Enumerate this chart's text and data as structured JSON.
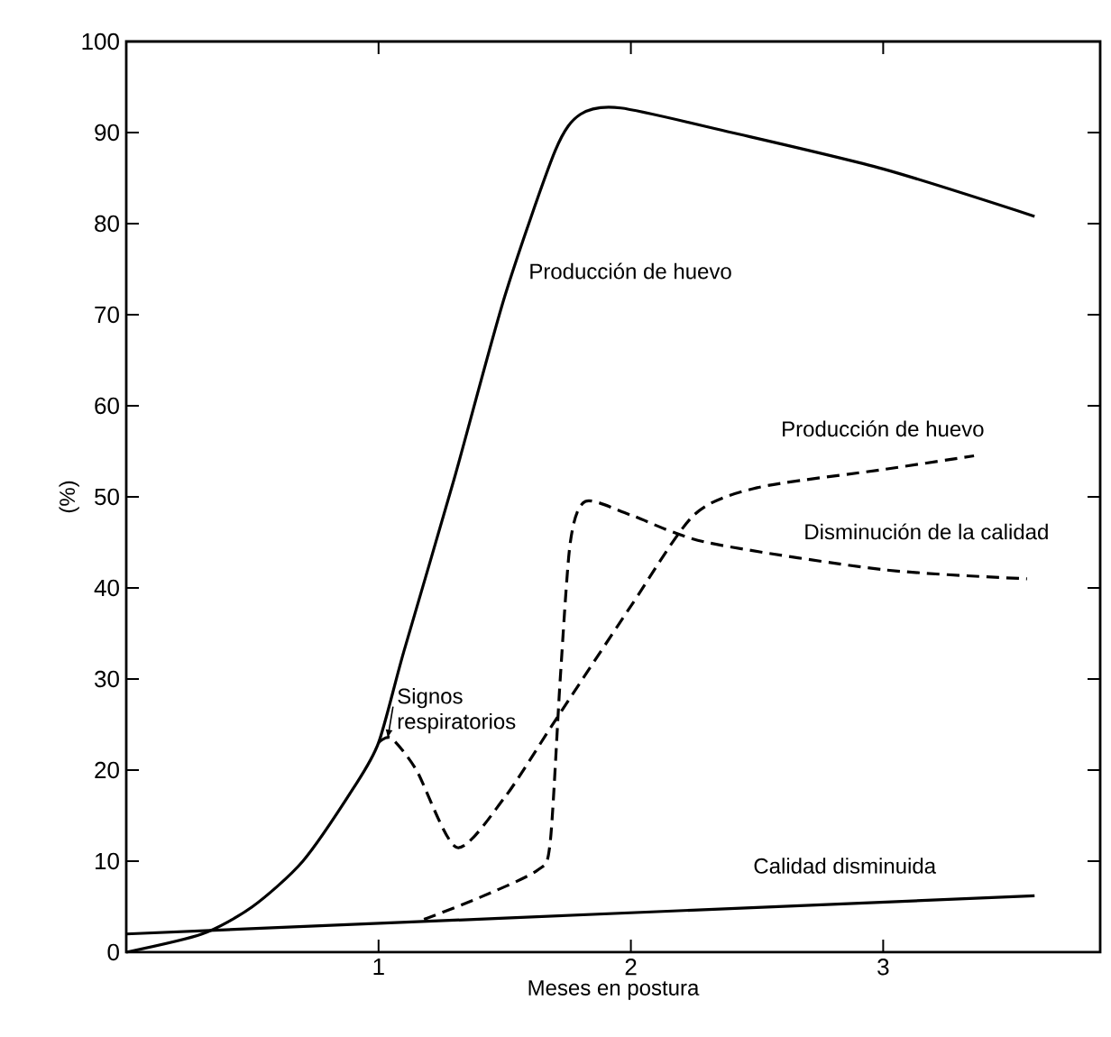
{
  "chart_data": {
    "type": "line",
    "xlabel": "Meses en postura",
    "ylabel": "(%)",
    "xlim": [
      0,
      3.86
    ],
    "ylim": [
      0,
      100
    ],
    "xticks": [
      1,
      2,
      3
    ],
    "yticks": [
      0,
      10,
      20,
      30,
      40,
      50,
      60,
      70,
      80,
      90,
      100
    ],
    "grid": false,
    "legend": false,
    "marker": "none",
    "series": [
      {
        "name": "Producción de huevo",
        "color": "#000000",
        "line_style": "solid",
        "x": [
          0,
          0.3,
          0.5,
          0.7,
          0.9,
          1.0,
          1.1,
          1.3,
          1.5,
          1.7,
          1.8,
          1.96,
          2.4,
          3.0,
          3.6
        ],
        "values": [
          0,
          2,
          5,
          10,
          18,
          23,
          33,
          52,
          72,
          88,
          92,
          92.7,
          90,
          86,
          80.8
        ]
      },
      {
        "name": "Producción de huevo",
        "color": "#000000",
        "line_style": "dashed",
        "x": [
          1.0,
          1.05,
          1.15,
          1.31,
          1.5,
          1.69,
          2.0,
          2.25,
          2.5,
          3.0,
          3.36
        ],
        "values": [
          23,
          23.5,
          20,
          11.5,
          17,
          25,
          38,
          48,
          51,
          53,
          54.5
        ]
      },
      {
        "name": "Disminución de la calidad",
        "color": "#000000",
        "line_style": "dashed",
        "x": [
          1.18,
          1.4,
          1.63,
          1.68,
          1.72,
          1.76,
          1.82,
          2.0,
          2.3,
          3.0,
          3.57
        ],
        "values": [
          3.6,
          6,
          9,
          12,
          30,
          45,
          49.5,
          48,
          45,
          42,
          41
        ]
      },
      {
        "name": "Calidad disminuida",
        "color": "#000000",
        "line_style": "solid",
        "x": [
          0,
          3.6
        ],
        "values": [
          2,
          6.2
        ]
      }
    ],
    "annotations": [
      {
        "text": "Signos respiratorios",
        "x": 1.0,
        "y": 23
      }
    ]
  }
}
